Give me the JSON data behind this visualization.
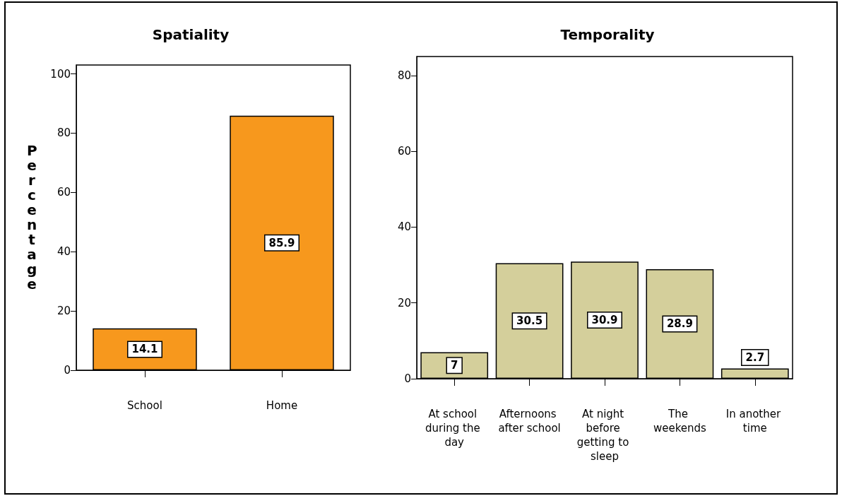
{
  "chart_data": [
    {
      "type": "bar",
      "title": "Spatiality",
      "ylabel": "Percentage",
      "categories": [
        "School",
        "Home"
      ],
      "values": [
        14.1,
        85.9
      ],
      "color": "#f7981d",
      "ylim": [
        0,
        103
      ],
      "yticks": [
        0,
        20,
        40,
        60,
        80,
        100
      ],
      "data_labels": true,
      "grid": false
    },
    {
      "type": "bar",
      "title": "Temporality",
      "categories": [
        "At school during the day",
        "Afternoons after school",
        "At night before getting to sleep",
        "The weekends",
        "In another time"
      ],
      "values": [
        7,
        30.5,
        30.9,
        28.9,
        2.7
      ],
      "color": "#d4cf9b",
      "ylim": [
        0,
        85
      ],
      "yticks": [
        0,
        20,
        40,
        60,
        80
      ],
      "data_labels": true,
      "grid": false
    }
  ]
}
